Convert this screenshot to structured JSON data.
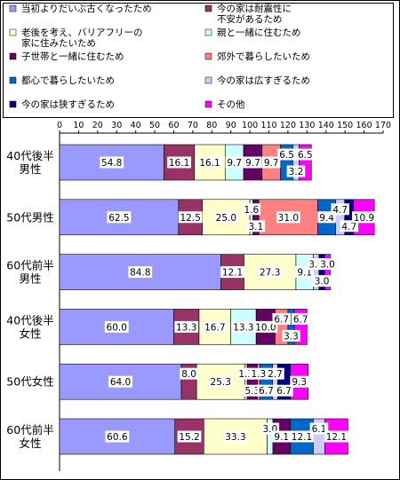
{
  "chart_data": {
    "type": "bar",
    "orientation": "horizontal",
    "stacked": true,
    "xlim": [
      0,
      170
    ],
    "x_ticks": [
      "0",
      "10",
      "20",
      "30",
      "40",
      "50",
      "60",
      "70",
      "80",
      "90",
      "100",
      "110",
      "120",
      "130",
      "140",
      "150",
      "160",
      "170"
    ],
    "grid": false,
    "legend_position": "top",
    "categories": [
      [
        "40代後半",
        "男性"
      ],
      [
        "50代男性"
      ],
      [
        "60代前半",
        "男性"
      ],
      [
        "40代後半",
        "女性"
      ],
      [
        "50代女性"
      ],
      [
        "60代前半",
        "女性"
      ]
    ],
    "series": [
      {
        "name": "当初よりだいぶ古くなったため",
        "color": "#9999ff",
        "values": [
          54.8,
          62.5,
          84.8,
          60.0,
          64.0,
          60.6
        ]
      },
      {
        "name": "今の家は耐震性に不安があるため",
        "color": "#993366",
        "values": [
          16.1,
          12.5,
          12.1,
          13.3,
          8.0,
          15.2
        ]
      },
      {
        "name": "老後を考え、バリアフリーの家に住みたいため",
        "color": "#ffffcc",
        "values": [
          16.1,
          25.0,
          27.3,
          16.7,
          25.3,
          33.3
        ]
      },
      {
        "name": "親と一緒に住むため",
        "color": "#ccffff",
        "values": [
          9.7,
          1.6,
          9.1,
          13.3,
          1.3,
          3.0
        ]
      },
      {
        "name": "子世帯と一緒に住むため",
        "color": "#660066",
        "values": [
          9.7,
          3.1,
          0,
          10.0,
          5.3,
          9.1
        ]
      },
      {
        "name": "郊外で暮らしたいため",
        "color": "#ff8080",
        "values": [
          9.7,
          31.0,
          0,
          6.7,
          1.3,
          0
        ]
      },
      {
        "name": "都心で暮らしたいため",
        "color": "#0066cc",
        "values": [
          6.5,
          9.4,
          0,
          3.3,
          6.7,
          12.1
        ]
      },
      {
        "name": "今の家は広すぎるため",
        "color": "#ccccff",
        "values": [
          3.2,
          4.7,
          3.0,
          0,
          2.7,
          6.1
        ]
      },
      {
        "name": "今の家は狭すぎるため",
        "color": "#000080",
        "values": [
          0,
          4.7,
          3.0,
          0,
          6.7,
          0
        ]
      },
      {
        "name": "その他",
        "color": "#ff00ff",
        "values": [
          6.5,
          10.9,
          3.0,
          6.7,
          9.3,
          12.1
        ]
      }
    ],
    "legend": [
      {
        "lines": [
          "当初よりだいぶ古くなったため"
        ],
        "series": 0
      },
      {
        "lines": [
          "今の家は耐震性に",
          "不安があるため"
        ],
        "series": 1
      },
      {
        "lines": [
          "老後を考え、バリアフリーの",
          "家に住みたいため"
        ],
        "series": 2
      },
      {
        "lines": [
          "親と一緒に住むため"
        ],
        "series": 3
      },
      {
        "lines": [
          "子世帯と一緒に住むため"
        ],
        "series": 4
      },
      {
        "lines": [
          "郊外で暮らしたいため"
        ],
        "series": 5
      },
      {
        "lines": [
          "都心で暮らしたいため"
        ],
        "series": 6
      },
      {
        "lines": [
          "今の家は広すぎるため"
        ],
        "series": 7
      },
      {
        "lines": [
          "今の家は狭すぎるため"
        ],
        "series": 8
      },
      {
        "lines": [
          "その他"
        ],
        "series": 9
      }
    ],
    "data_labels": [
      [
        {
          "text": "54.8",
          "series": 0
        },
        {
          "text": "16.1",
          "series": 1
        },
        {
          "text": "16.1",
          "series": 2
        },
        {
          "text": "9.7",
          "series": 3
        },
        {
          "text": "9.7",
          "series": 4
        },
        {
          "text": "9.7",
          "series": 5
        },
        {
          "text": "6.5",
          "series": 6
        },
        {
          "text": "3.2",
          "series": 7
        },
        {
          "text": "6.5",
          "series": 9
        }
      ],
      [
        {
          "text": "62.5",
          "series": 0
        },
        {
          "text": "12.5",
          "series": 1
        },
        {
          "text": "25.0",
          "series": 2
        },
        {
          "text": "1.6",
          "series": 3
        },
        {
          "text": "3.1",
          "series": 4
        },
        {
          "text": "31.0",
          "series": 5
        },
        {
          "text": "9.4",
          "series": 6
        },
        {
          "text": "4.7",
          "series": 7
        },
        {
          "text": "4.7",
          "series": 8
        },
        {
          "text": "10.9",
          "series": 9
        }
      ],
      [
        {
          "text": "84.8",
          "series": 0
        },
        {
          "text": "12.1",
          "series": 1
        },
        {
          "text": "27.3",
          "series": 2
        },
        {
          "text": "9.1",
          "series": 3
        },
        {
          "text": "3.0",
          "series": 7
        },
        {
          "text": "3.0",
          "series": 8
        },
        {
          "text": "3.0",
          "series": 9
        }
      ],
      [
        {
          "text": "60.0",
          "series": 0
        },
        {
          "text": "13.3",
          "series": 1
        },
        {
          "text": "16.7",
          "series": 2
        },
        {
          "text": "13.3",
          "series": 3
        },
        {
          "text": "10.0",
          "series": 4
        },
        {
          "text": "6.7",
          "series": 5
        },
        {
          "text": "3.3",
          "series": 6
        },
        {
          "text": "6.7",
          "series": 9
        }
      ],
      [
        {
          "text": "64.0",
          "series": 0
        },
        {
          "text": "8.0",
          "series": 1
        },
        {
          "text": "25.3",
          "series": 2
        },
        {
          "text": "1.3",
          "series": 3
        },
        {
          "text": "5.3",
          "series": 4
        },
        {
          "text": "1.3",
          "series": 5
        },
        {
          "text": "6.7",
          "series": 6
        },
        {
          "text": "2.7",
          "series": 7
        },
        {
          "text": "6.7",
          "series": 8
        },
        {
          "text": "9.3",
          "series": 9
        }
      ],
      [
        {
          "text": "60.6",
          "series": 0
        },
        {
          "text": "15.2",
          "series": 1
        },
        {
          "text": "33.3",
          "series": 2
        },
        {
          "text": "3.0",
          "series": 3
        },
        {
          "text": "9.1",
          "series": 4
        },
        {
          "text": "12.1",
          "series": 6
        },
        {
          "text": "6.1",
          "series": 7
        },
        {
          "text": "12.1",
          "series": 9
        }
      ]
    ]
  }
}
